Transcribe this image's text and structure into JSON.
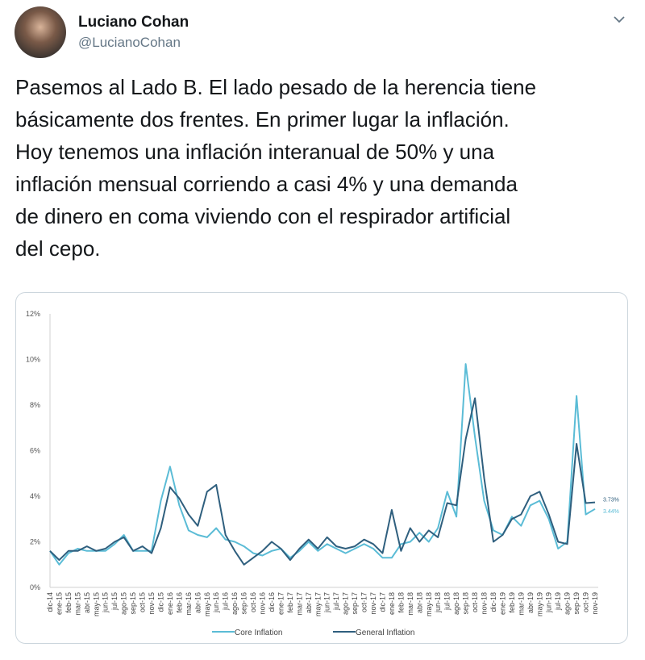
{
  "user": {
    "name": "Luciano Cohan",
    "handle": "@LucianoCohan"
  },
  "tweet": {
    "text_lines": [
      "Pasemos al Lado B. El lado pesado de la herencia tiene",
      "básicamente dos frentes. En primer lugar la inflación.",
      "Hoy tenemos una inflación interanual de 50% y una",
      "inflación mensual corriendo a casi 4% y una demanda",
      "de dinero en coma viviendo con el respirador artificial",
      "del cepo."
    ]
  },
  "chart_data": {
    "type": "line",
    "categories": [
      "dic-14",
      "ene-15",
      "feb-15",
      "mar-15",
      "abr-15",
      "may-15",
      "jun-15",
      "jul-15",
      "ago-15",
      "sep-15",
      "oct-15",
      "nov-15",
      "dic-15",
      "ene-16",
      "feb-16",
      "mar-16",
      "abr-16",
      "may-16",
      "jun-16",
      "jul-16",
      "ago-16",
      "sep-16",
      "oct-16",
      "nov-16",
      "dic-16",
      "ene-17",
      "feb-17",
      "mar-17",
      "abr-17",
      "may-17",
      "jun-17",
      "jul-17",
      "ago-17",
      "sep-17",
      "oct-17",
      "nov-17",
      "dic-17",
      "ene-18",
      "feb-18",
      "mar-18",
      "abr-18",
      "may-18",
      "jun-18",
      "jul-18",
      "ago-18",
      "sep-18",
      "oct-18",
      "nov-18",
      "dic-18",
      "ene-19",
      "feb-19",
      "mar-19",
      "abr-19",
      "may-19",
      "jun-19",
      "jul-19",
      "ago-19",
      "sep-19",
      "oct-19",
      "nov-19"
    ],
    "series": [
      {
        "name": "Core Inflation",
        "color": "#5bbcd6",
        "values": [
          1.6,
          1.0,
          1.5,
          1.7,
          1.6,
          1.6,
          1.6,
          1.9,
          2.3,
          1.6,
          1.6,
          1.6,
          3.8,
          5.3,
          3.6,
          2.5,
          2.3,
          2.2,
          2.6,
          2.1,
          2.0,
          1.8,
          1.5,
          1.4,
          1.6,
          1.7,
          1.3,
          1.6,
          2.0,
          1.6,
          1.9,
          1.7,
          1.5,
          1.7,
          1.9,
          1.7,
          1.3,
          1.3,
          1.9,
          2.0,
          2.4,
          2.0,
          2.6,
          4.2,
          3.1,
          9.8,
          6.6,
          3.8,
          2.5,
          2.3,
          3.1,
          2.7,
          3.6,
          3.8,
          3.0,
          1.7,
          2.0,
          8.4,
          3.2,
          3.44
        ],
        "value_labels": [
          null,
          null,
          null,
          null,
          null,
          null,
          null,
          null,
          null,
          null,
          null,
          null,
          null,
          null,
          null,
          null,
          null,
          null,
          null,
          null,
          null,
          null,
          null,
          null,
          null,
          null,
          null,
          null,
          null,
          null,
          null,
          null,
          null,
          null,
          null,
          null,
          null,
          null,
          null,
          null,
          null,
          null,
          null,
          null,
          null,
          null,
          null,
          null,
          null,
          null,
          null,
          null,
          null,
          null,
          null,
          null,
          null,
          null,
          null,
          "3.44%"
        ]
      },
      {
        "name": "General Inflation",
        "color": "#2f5f7e",
        "values": [
          1.6,
          1.2,
          1.6,
          1.6,
          1.8,
          1.6,
          1.7,
          2.0,
          2.2,
          1.6,
          1.8,
          1.5,
          2.6,
          4.4,
          3.9,
          3.2,
          2.7,
          4.2,
          4.5,
          2.3,
          1.6,
          1.0,
          1.3,
          1.6,
          2.0,
          1.7,
          1.2,
          1.7,
          2.1,
          1.7,
          2.2,
          1.8,
          1.7,
          1.8,
          2.1,
          1.9,
          1.5,
          3.4,
          1.6,
          2.6,
          2.0,
          2.5,
          2.2,
          3.7,
          3.6,
          6.5,
          8.3,
          4.8,
          2.0,
          2.3,
          3.0,
          3.2,
          4.0,
          4.2,
          3.2,
          2.0,
          1.9,
          6.3,
          3.7,
          3.73
        ],
        "value_labels": [
          null,
          null,
          null,
          null,
          null,
          null,
          null,
          null,
          null,
          null,
          null,
          null,
          null,
          null,
          null,
          null,
          null,
          null,
          null,
          null,
          null,
          null,
          null,
          null,
          null,
          null,
          null,
          null,
          null,
          null,
          null,
          null,
          null,
          null,
          null,
          null,
          null,
          null,
          null,
          null,
          null,
          null,
          null,
          null,
          null,
          null,
          null,
          null,
          null,
          null,
          null,
          null,
          null,
          null,
          null,
          null,
          null,
          null,
          null,
          "3.73%"
        ]
      }
    ],
    "ylim": [
      0,
      12
    ],
    "yticks": [
      {
        "value": 0,
        "label": "0%"
      },
      {
        "value": 2,
        "label": "2%"
      },
      {
        "value": 4,
        "label": "4%"
      },
      {
        "value": 6,
        "label": "6%"
      },
      {
        "value": 8,
        "label": "8%"
      },
      {
        "value": 10,
        "label": "10%"
      },
      {
        "value": 12,
        "label": "12%"
      }
    ],
    "grid": false,
    "legend": "bottom"
  }
}
